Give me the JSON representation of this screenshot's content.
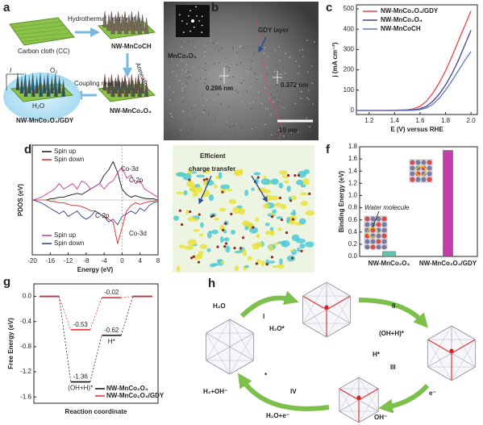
{
  "panels": {
    "a": {
      "label": "a",
      "carbon_cloth": "Carbon cloth (CC)",
      "step1": "Hydrothermal treatment",
      "product1": "NW-MnCoCH",
      "step2": "Annealing",
      "product2": "NW-MnCo₂O₄",
      "step3": "Coupling reaction",
      "product3": "NW-MnCo₂O₄/GDY",
      "current": "I",
      "o2": "O₂",
      "h2o": "H₂O"
    },
    "b": {
      "label": "b",
      "phase": "MnCo₂O₄",
      "layer": "GDY layer",
      "spacing1": "0.286 nm",
      "spacing2": "0.372 nm",
      "scale": "10 nm"
    },
    "c": {
      "label": "c",
      "type": "line",
      "xlabel": "E (V) versus RHE",
      "ylabel": "j (mA cm⁻²)",
      "xlim": [
        1.1,
        2.05
      ],
      "ylim": [
        -20,
        520
      ],
      "xticks": [
        1.2,
        1.4,
        1.6,
        1.8,
        {
          "value": 2.0,
          "label": "2.0"
        }
      ],
      "yticks": [
        0,
        100,
        200,
        300,
        400,
        500
      ],
      "x": [
        1.1,
        1.2,
        1.3,
        1.4,
        1.5,
        1.55,
        1.6,
        1.65,
        1.7,
        1.75,
        1.8,
        1.85,
        1.9,
        1.95,
        2.0
      ],
      "series": [
        {
          "name": "NW-MnCo₂O₄/GDY",
          "color": "#e8434a",
          "values": [
            0,
            0,
            0,
            1,
            3,
            8,
            20,
            45,
            85,
            135,
            195,
            265,
            340,
            415,
            490
          ]
        },
        {
          "name": "NW-MnCo₂O₄",
          "color": "#4b3f8c",
          "values": [
            0,
            0,
            0,
            0,
            1,
            3,
            8,
            20,
            45,
            80,
            125,
            180,
            245,
            320,
            395
          ]
        },
        {
          "name": "NW-MnCoCH",
          "color": "#5a78c8",
          "values": [
            0,
            0,
            0,
            0,
            0,
            1,
            4,
            12,
            30,
            60,
            100,
            145,
            195,
            245,
            290
          ]
        }
      ]
    },
    "d": {
      "label": "d",
      "type": "line",
      "xlabel": "Energy (eV)",
      "ylabel": "PDOS (eV)",
      "xlim": [
        -20,
        8
      ],
      "ylim": [
        -1,
        1
      ],
      "xticks": [
        -20,
        -16,
        -12,
        -8,
        -4,
        0,
        4,
        8
      ],
      "x": [
        -20,
        -19,
        -18,
        -17,
        -16,
        -15,
        -14,
        -13,
        -12,
        -11,
        -10,
        -9,
        -8,
        -7,
        -6,
        -5,
        -4,
        -3,
        -2,
        -1,
        0,
        1,
        2,
        3,
        4,
        5,
        6,
        7,
        8
      ],
      "series": [
        {
          "name": "Spin up",
          "color": "#111111",
          "values": [
            0,
            0,
            0,
            0,
            0.02,
            0.03,
            0.05,
            0.05,
            0.08,
            0.1,
            0.12,
            0.1,
            0.15,
            0.2,
            0.25,
            0.3,
            0.45,
            0.55,
            0.7,
            0.5,
            0.2,
            0.1,
            0.05,
            0.08,
            0.05,
            0.03,
            0.02,
            0.02,
            0
          ]
        },
        {
          "name": "Spin down",
          "color": "#e0262e",
          "values": [
            0,
            0,
            0,
            0,
            -0.02,
            -0.03,
            -0.05,
            -0.05,
            -0.08,
            -0.1,
            -0.1,
            -0.12,
            -0.15,
            -0.2,
            -0.2,
            -0.25,
            -0.3,
            -0.35,
            -0.4,
            -0.8,
            -0.5,
            -0.2,
            -0.1,
            -0.05,
            -0.08,
            -0.05,
            -0.03,
            -0.02,
            0
          ]
        },
        {
          "name": "Spin up",
          "color": "#c0399a",
          "values": [
            0,
            0.02,
            0.05,
            0.1,
            0.15,
            0.2,
            0.3,
            0.2,
            0.25,
            0.3,
            0.2,
            0.35,
            0.3,
            0.2,
            0.25,
            0.3,
            0.2,
            0.3,
            0.35,
            0.5,
            0.6,
            0.4,
            0.45,
            0.3,
            0.35,
            0.2,
            0.15,
            0.1,
            0.05
          ]
        },
        {
          "name": "Spin down",
          "color": "#2c3e8c",
          "values": [
            0,
            -0.02,
            -0.05,
            -0.1,
            -0.15,
            -0.2,
            -0.25,
            -0.2,
            -0.3,
            -0.25,
            -0.2,
            -0.3,
            -0.35,
            -0.3,
            -0.2,
            -0.25,
            -0.3,
            -0.4,
            -0.35,
            -0.45,
            -0.3,
            -0.25,
            -0.2,
            -0.25,
            -0.15,
            -0.2,
            -0.1,
            -0.05,
            -0.02
          ]
        }
      ],
      "annotations": [
        "Co-3d",
        "C-2p",
        "C-2p",
        "Co-3d"
      ]
    },
    "e": {
      "label": "e",
      "title_line1": "Efficient",
      "title_line2": "charge transfer"
    },
    "f": {
      "label": "f",
      "type": "bar",
      "ylabel": "Binding Energy (eV)",
      "ylim": [
        0,
        1.8
      ],
      "yticks": [
        {
          "value": 0,
          "label": "0.0"
        },
        0.2,
        0.4,
        0.6,
        0.8,
        {
          "value": 1,
          "label": "1.0"
        },
        1.2,
        1.4,
        1.6,
        1.8
      ],
      "categories": [
        "NW-MnCo₂O₄",
        "NW-MnCo₂O₄/GDY"
      ],
      "values": [
        0.08,
        1.74
      ],
      "colors": [
        "#5ec7b4",
        "#c03fa6"
      ],
      "annotation": "Water molecule"
    },
    "g": {
      "label": "g",
      "type": "step",
      "xlabel": "Reaction coordinate",
      "ylabel": "Free Energy (eV)",
      "ylim": [
        -1.7,
        0.2
      ],
      "yticks": [
        {
          "value": 0,
          "label": "0.0"
        },
        -0.4,
        -0.8,
        -1.2,
        -1.6
      ],
      "series": [
        {
          "name": "NW-MnCo₂O₄",
          "color": "#111111",
          "values": [
            0,
            -1.36,
            -0.62,
            0
          ]
        },
        {
          "name": "NW-MnCo₂O₄/GDY",
          "color": "#e0262e",
          "values": [
            0,
            -0.53,
            -0.02,
            0
          ]
        }
      ],
      "annotations": [
        "(OH+H)*",
        "H*"
      ]
    },
    "h": {
      "label": "h",
      "h2o": "H₂O",
      "step1": "I",
      "h2o_ads": "H₂O*",
      "step2": "II",
      "ohh": "(OH+H)*",
      "electron": "e⁻",
      "step3": "III",
      "h_ads": "H*",
      "oh": "OH⁻",
      "step4": "IV",
      "site": "*",
      "h2o_e": "H₂O+e⁻",
      "h2_oh": "H₂+OH⁻"
    }
  }
}
